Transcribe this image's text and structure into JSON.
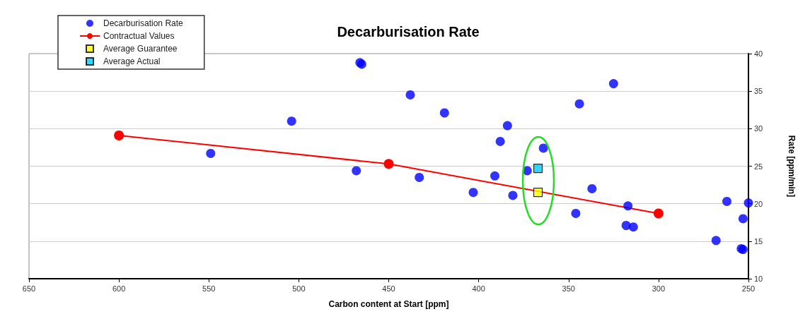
{
  "chart_data": {
    "type": "scatter",
    "title": "Decarburisation Rate",
    "xlabel": "Carbon content at Start [ppm]",
    "ylabel": "Rate [ppm/min]",
    "xlim": [
      650,
      250
    ],
    "xticks": [
      650,
      600,
      550,
      500,
      450,
      400,
      350,
      300,
      250
    ],
    "ylim": [
      10,
      40
    ],
    "yticks": [
      10,
      15,
      20,
      25,
      30,
      35,
      40
    ],
    "grid": "y",
    "legend": "top left",
    "series": [
      {
        "name": "Decarburisation Rate",
        "marker": "circle",
        "color": "#0000ff",
        "x": [
          549,
          504,
          468,
          466,
          465,
          438,
          433,
          419,
          403,
          384,
          388,
          391,
          381,
          373,
          364,
          344,
          325,
          346,
          337,
          317,
          318,
          314,
          268,
          262,
          250,
          253,
          254,
          253
        ],
        "values": [
          26.7,
          31.0,
          24.4,
          38.8,
          38.6,
          34.5,
          23.5,
          32.1,
          21.5,
          30.4,
          28.3,
          23.7,
          21.1,
          24.4,
          27.4,
          33.3,
          36.0,
          18.7,
          22.0,
          19.7,
          17.1,
          16.9,
          15.1,
          20.3,
          20.1,
          18.0,
          14.0,
          13.9
        ]
      },
      {
        "name": "Contractual Values",
        "type": "line",
        "marker": "circle",
        "line_style": "solid",
        "color": "#ff0000",
        "x": [
          600,
          450,
          300
        ],
        "values": [
          29.1,
          25.3,
          18.7
        ]
      },
      {
        "name": "Average Guarantee",
        "marker": "square",
        "color": "#ffff00",
        "x": [
          367
        ],
        "values": [
          21.5
        ]
      },
      {
        "name": "Average Actual",
        "marker": "square",
        "color": "#00ccff",
        "x": [
          367
        ],
        "values": [
          24.7
        ]
      }
    ]
  }
}
